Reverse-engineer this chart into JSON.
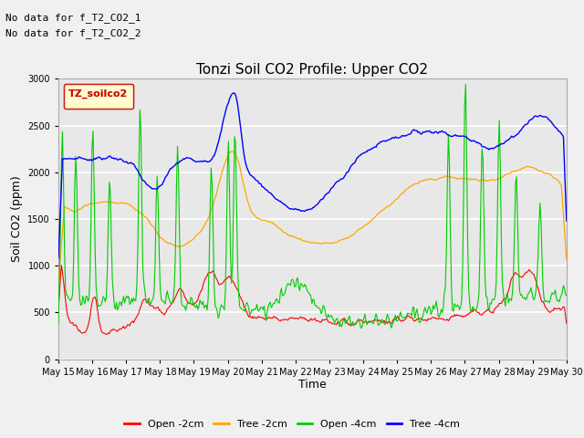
{
  "title": "Tonzi Soil CO2 Profile: Upper CO2",
  "xlabel": "Time",
  "ylabel": "Soil CO2 (ppm)",
  "ylim": [
    0,
    3000
  ],
  "x_tick_labels": [
    "May 15",
    "May 16",
    "May 17",
    "May 18",
    "May 19",
    "May 20",
    "May 21",
    "May 22",
    "May 23",
    "May 24",
    "May 25",
    "May 26",
    "May 27",
    "May 28",
    "May 29",
    "May 30"
  ],
  "no_data_text": [
    "No data for f_T2_CO2_1",
    "No data for f_T2_CO2_2"
  ],
  "legend_label_text": "TZ_soilco2",
  "legend_entries": [
    "Open -2cm",
    "Tree -2cm",
    "Open -4cm",
    "Tree -4cm"
  ],
  "legend_colors": [
    "#ff0000",
    "#ffa500",
    "#00cc00",
    "#0000ff"
  ],
  "line_colors": {
    "open2": "#ff0000",
    "tree2": "#ffa500",
    "open4": "#00cc00",
    "tree4": "#0000ff"
  },
  "fig_facecolor": "#f0f0f0",
  "ax_facecolor": "#e8e8e8",
  "n_points": 500
}
